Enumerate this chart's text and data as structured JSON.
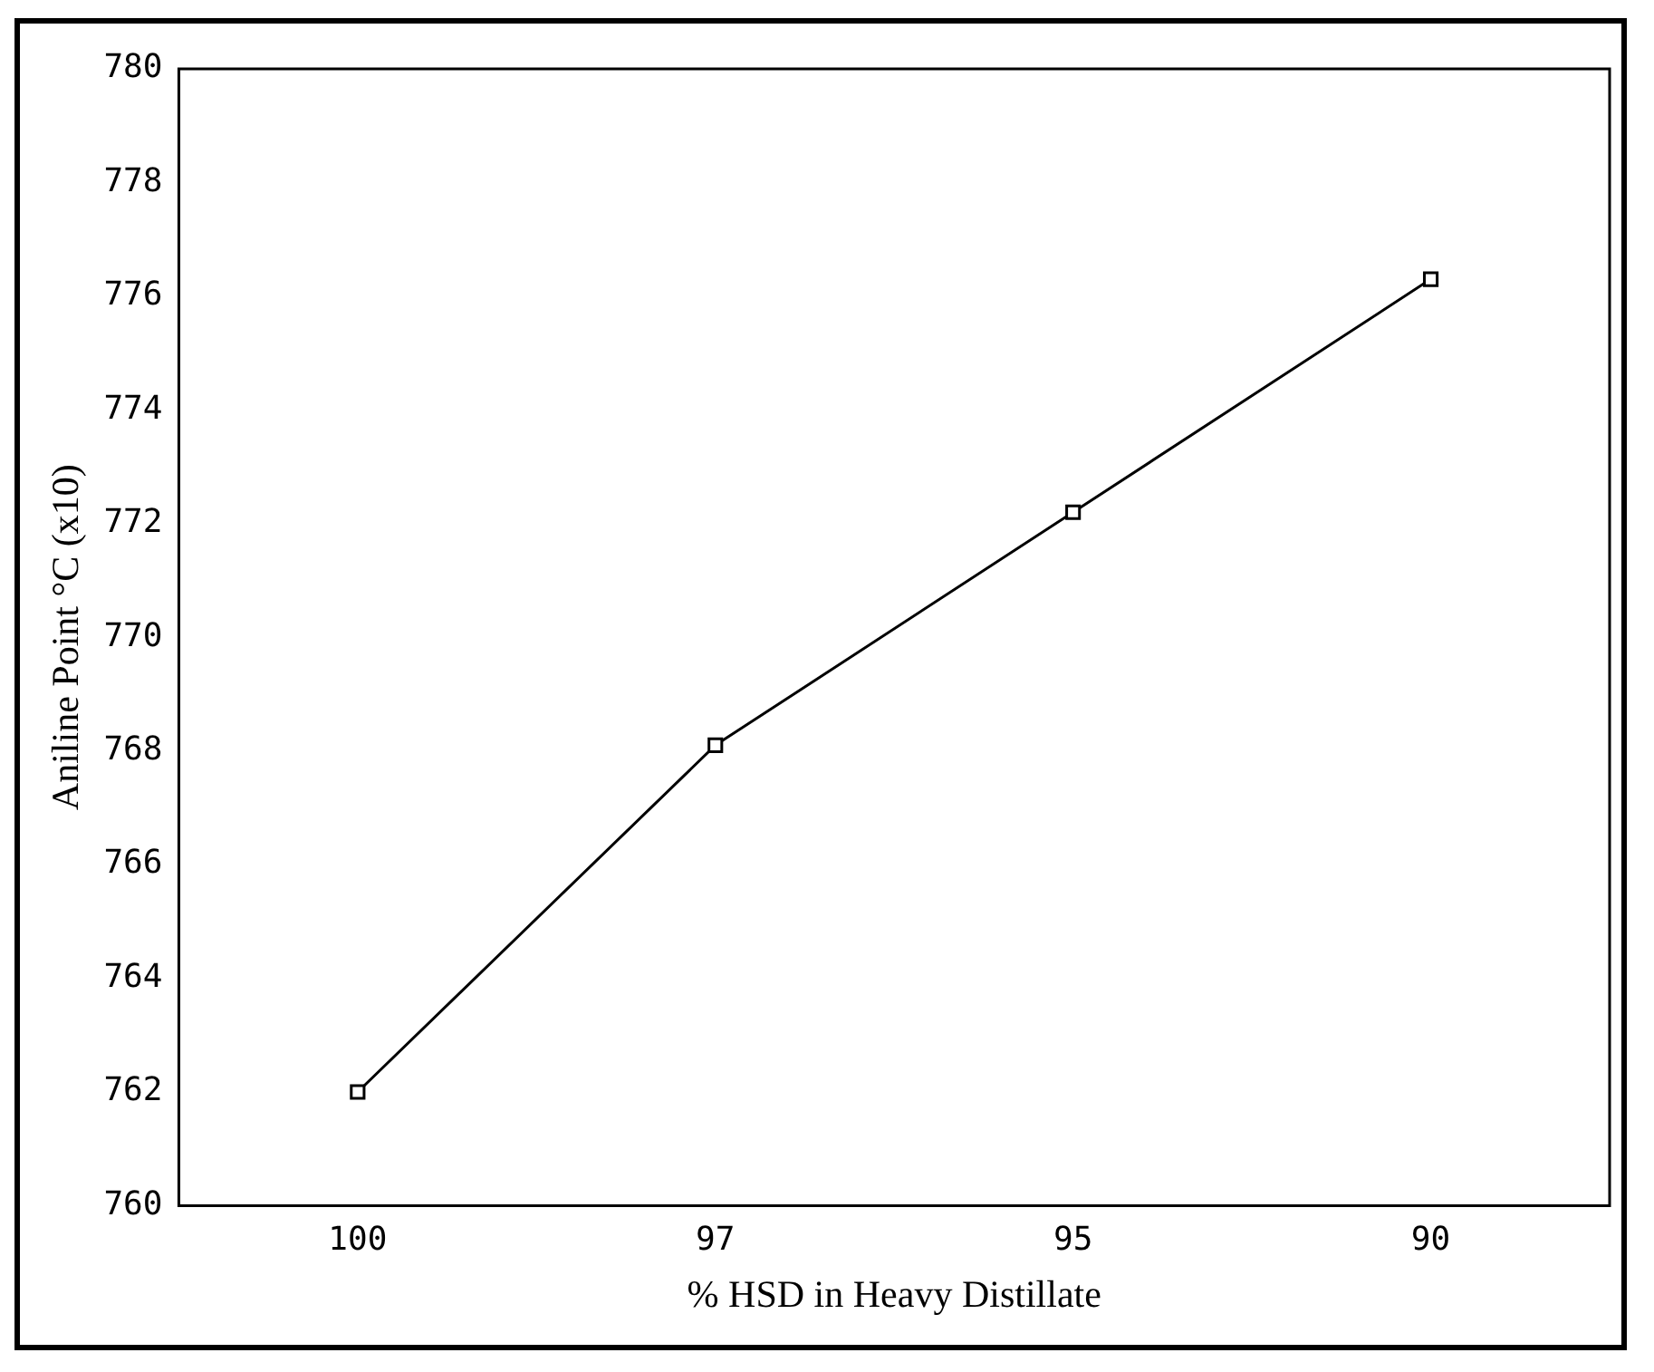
{
  "chart_data": {
    "type": "line",
    "xlabel": "% HSD in Heavy Distillate",
    "ylabel": "Aniline Point °C (x10)",
    "categories": [
      "100",
      "97",
      "95",
      "90"
    ],
    "series": [
      {
        "color": "#000000",
        "values": [
          762,
          768.1,
          772.2,
          776.3
        ]
      }
    ],
    "ylim": [
      760,
      780
    ],
    "yticks": [
      760,
      762,
      764,
      766,
      768,
      770,
      772,
      774,
      776,
      778,
      780
    ],
    "marker": "square",
    "line_style": "solid",
    "grid": false,
    "legend": false
  }
}
